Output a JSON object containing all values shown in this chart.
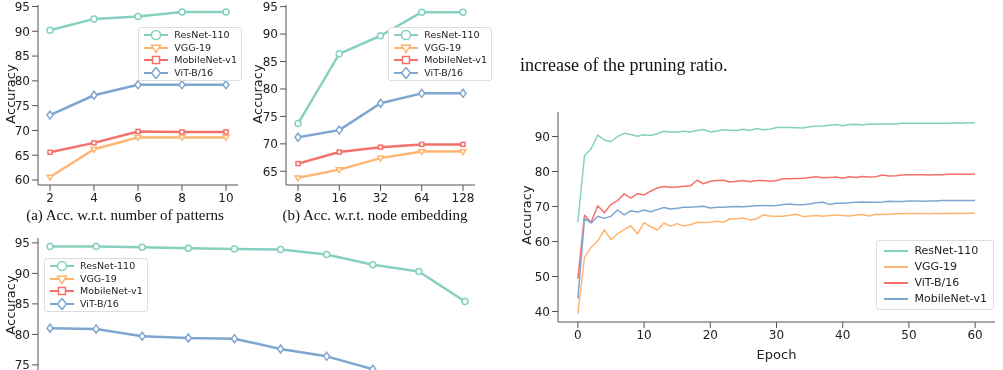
{
  "chart_data": [
    {
      "type": "line",
      "ylabel": "Accuracy",
      "annotations": [
        "(a) Acc. w.r.t. number of patterns"
      ],
      "categories": [
        "2",
        "4",
        "6",
        "8",
        "10"
      ],
      "ylim": [
        59,
        95.3
      ],
      "yticks": [
        60,
        65,
        70,
        75,
        80,
        85,
        90,
        95
      ],
      "legend": "top right",
      "grid": false,
      "series": [
        {
          "name": "ResNet-110",
          "color": "#86d0c0",
          "marker": "circle",
          "values": [
            90.2,
            92.5,
            93,
            93.9,
            93.9
          ]
        },
        {
          "name": "VGG-19",
          "color": "#ffb570",
          "marker": "triangle",
          "values": [
            60.6,
            66.2,
            68.6,
            68.6,
            68.6
          ]
        },
        {
          "name": "MobileNet-v1",
          "color": "#f4716a",
          "marker": "square",
          "values": [
            65.6,
            67.5,
            69.8,
            69.7,
            69.7
          ]
        },
        {
          "name": "ViT-B/16",
          "color": "#7ea6d0",
          "marker": "diamond",
          "values": [
            73.1,
            77.1,
            79.2,
            79.2,
            79.2
          ]
        }
      ]
    },
    {
      "type": "line",
      "ylabel": "Accuracy",
      "annotations": [
        "(b) Acc. w.r.t. node embedding"
      ],
      "categories": [
        "8",
        "16",
        "32",
        "64",
        "128"
      ],
      "ylim": [
        62.5,
        95.3
      ],
      "yticks": [
        65,
        70,
        75,
        80,
        85,
        90,
        95
      ],
      "legend": "top right",
      "grid": false,
      "series": [
        {
          "name": "ResNet-110",
          "color": "#86d0c0",
          "marker": "circle",
          "values": [
            73.7,
            86.4,
            89.7,
            94,
            94
          ]
        },
        {
          "name": "VGG-19",
          "color": "#ffb570",
          "marker": "triangle",
          "values": [
            63.8,
            65.3,
            67.4,
            68.6,
            68.6
          ]
        },
        {
          "name": "MobileNet-v1",
          "color": "#f4716a",
          "marker": "square",
          "values": [
            66.4,
            68.5,
            69.4,
            69.9,
            69.9
          ]
        },
        {
          "name": "ViT-B/16",
          "color": "#7ea6d0",
          "marker": "diamond",
          "values": [
            71.2,
            72.5,
            77.4,
            79.2,
            79.2
          ]
        }
      ]
    },
    {
      "type": "line",
      "ylabel": "Accuracy",
      "categories": [
        null,
        null,
        null,
        null,
        null,
        null,
        null,
        null,
        null,
        null
      ],
      "ylim": [
        74,
        95.8
      ],
      "yticks": [
        75,
        80,
        85,
        90,
        95
      ],
      "tick_labels": "y",
      "legend": "top left",
      "grid": false,
      "series": [
        {
          "name": "ResNet-110",
          "color": "#86d0c0",
          "marker": "circle",
          "values": [
            94.4,
            94.4,
            94.3,
            94.1,
            94.0,
            93.9,
            93.1,
            91.4,
            90.3,
            85.4
          ]
        },
        {
          "name": "VGG-19",
          "color": "#ffb570",
          "marker": "triangle",
          "values": [
            null,
            null,
            null,
            null,
            null,
            null,
            null,
            null,
            null,
            null
          ]
        },
        {
          "name": "MobileNet-v1",
          "color": "#f4716a",
          "marker": "square",
          "values": [
            null,
            null,
            null,
            null,
            null,
            null,
            null,
            null,
            null,
            null
          ]
        },
        {
          "name": "ViT-B/16",
          "color": "#7ea6d0",
          "marker": "diamond",
          "values": [
            81.0,
            80.9,
            79.7,
            79.4,
            79.3,
            77.6,
            76.4,
            74.3,
            null,
            null
          ]
        }
      ]
    },
    {
      "type": "other",
      "annotations": [
        "increase of the pruning ratio."
      ]
    },
    {
      "type": "line",
      "xlabel": "Epoch",
      "ylabel": "Accuracy",
      "xlim": [
        -3,
        63
      ],
      "xticks": [
        0,
        10,
        20,
        30,
        40,
        50,
        60
      ],
      "ylim": [
        37,
        97
      ],
      "yticks": [
        40,
        50,
        60,
        70,
        80,
        90
      ],
      "legend": "bottom right",
      "grid": false,
      "marker": "none",
      "x": [
        0,
        1,
        2,
        3,
        4,
        5,
        6,
        7,
        8,
        9,
        10,
        11,
        12,
        13,
        14,
        15,
        16,
        17,
        18,
        19,
        20,
        21,
        22,
        23,
        24,
        25,
        26,
        27,
        28,
        29,
        30,
        31,
        32,
        33,
        34,
        35,
        36,
        37,
        38,
        39,
        40,
        41,
        42,
        43,
        44,
        45,
        46,
        47,
        48,
        49,
        50,
        51,
        52,
        53,
        54,
        55,
        56,
        57,
        58,
        59,
        60
      ],
      "series": [
        {
          "name": "ResNet-110",
          "color": "#86d0c0",
          "values": [
            65.5,
            84.5,
            86.5,
            90.4,
            89,
            88.5,
            90,
            90.9,
            90.6,
            90.1,
            90.5,
            90.3,
            90.8,
            91.5,
            91.3,
            91.3,
            91.5,
            91.3,
            91.7,
            92,
            91.3,
            91.6,
            91.9,
            91.8,
            91.7,
            92.1,
            91.7,
            92.3,
            91.9,
            92.1,
            92.6,
            92.6,
            92.6,
            92.5,
            92.4,
            92.8,
            92.9,
            93,
            93.2,
            93.4,
            93.1,
            93.4,
            93.5,
            93.3,
            93.6,
            93.5,
            93.6,
            93.6,
            93.6,
            93.8,
            93.8,
            93.8,
            93.8,
            93.8,
            93.8,
            93.8,
            93.8,
            93.9,
            93.8,
            93.9,
            93.9
          ]
        },
        {
          "name": "VGG-19",
          "color": "#ffb570",
          "values": [
            39.3,
            55.5,
            58.3,
            60.2,
            63.3,
            60.5,
            62.2,
            63.4,
            64.5,
            62.2,
            65.4,
            64.2,
            63.3,
            65.3,
            64.4,
            65.1,
            64.4,
            64.8,
            65.5,
            65.4,
            65.5,
            65.8,
            65.5,
            66.5,
            66.5,
            66.7,
            66.1,
            66.5,
            67.6,
            67.3,
            67.2,
            67.2,
            67.5,
            67.8,
            67.1,
            67.3,
            67.4,
            67.2,
            67.4,
            67.6,
            67.4,
            67.3,
            67.6,
            67.7,
            67.3,
            67.8,
            67.7,
            67.8,
            67.9,
            67.9,
            68,
            68,
            68,
            67.9,
            68,
            68,
            68,
            68.1,
            68,
            68.1,
            68.1
          ]
        },
        {
          "name": "ViT-B/16",
          "color": "#f4716a",
          "values": [
            49.3,
            67.5,
            65.5,
            70.2,
            68.2,
            70.6,
            71.7,
            73.6,
            72.4,
            73.7,
            73.3,
            74.4,
            75.3,
            75.7,
            75.5,
            75.6,
            75.8,
            75.9,
            77.5,
            76.5,
            77.2,
            77.4,
            77.5,
            77,
            77.2,
            77.4,
            77.1,
            77.4,
            77.4,
            77.2,
            77.4,
            77.9,
            77.9,
            78,
            78.1,
            78.3,
            78.5,
            78.2,
            78.3,
            78.4,
            78.1,
            78.5,
            78.3,
            78.6,
            78.4,
            78.5,
            79,
            78.7,
            78.8,
            79,
            79.1,
            79.1,
            79.1,
            79,
            79.1,
            79.1,
            79.2,
            79.2,
            79.2,
            79.2,
            79.3
          ]
        },
        {
          "name": "MobileNet-v1",
          "color": "#7ea6d0",
          "values": [
            43.7,
            66.5,
            65.3,
            67.2,
            66.6,
            67.2,
            69,
            67.6,
            68.8,
            68.4,
            69,
            68.5,
            69.1,
            69.7,
            69.3,
            69.5,
            69.8,
            69.8,
            69.9,
            70.1,
            69.6,
            69.8,
            69.8,
            69.9,
            70,
            69.9,
            70.1,
            70.2,
            70.3,
            70.2,
            70.3,
            70.6,
            70.7,
            70.5,
            70.5,
            70.7,
            71.1,
            71.2,
            70.6,
            70.9,
            70.9,
            71.1,
            71.2,
            71.3,
            71.2,
            71.2,
            71.3,
            71.5,
            71.4,
            71.4,
            71.6,
            71.6,
            71.5,
            71.6,
            71.6,
            71.7,
            71.7,
            71.7,
            71.7,
            71.7,
            71.7
          ]
        }
      ]
    }
  ]
}
